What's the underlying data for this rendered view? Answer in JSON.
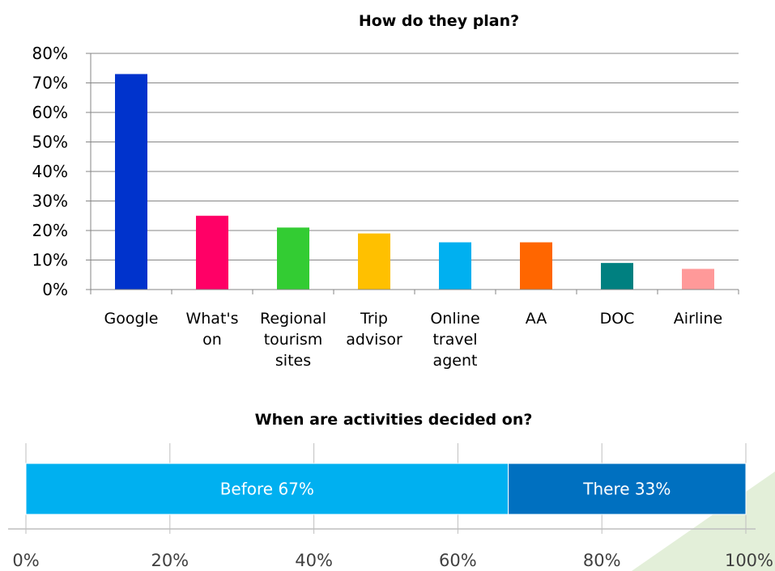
{
  "chart_data": [
    {
      "type": "bar",
      "title": "How do they plan?",
      "categories": [
        [
          "Google"
        ],
        [
          "What's",
          "on"
        ],
        [
          "Regional",
          "tourism",
          "sites"
        ],
        [
          "Trip",
          "advisor"
        ],
        [
          "Online",
          "travel",
          "agent"
        ],
        [
          "AA"
        ],
        [
          "DOC"
        ],
        [
          "Airline"
        ]
      ],
      "values": [
        73,
        25,
        21,
        19,
        16,
        16,
        9,
        7
      ],
      "colors": [
        "#0033cc",
        "#ff0066",
        "#33cc33",
        "#ffc000",
        "#00b0f0",
        "#ff6600",
        "#008080",
        "#ff9999"
      ],
      "ylim": [
        0,
        80
      ],
      "yticks": [
        0,
        10,
        20,
        30,
        40,
        50,
        60,
        70,
        80
      ],
      "ytick_labels": [
        "0%",
        "10%",
        "20%",
        "30%",
        "40%",
        "50%",
        "60%",
        "70%",
        "80%"
      ],
      "grid": true
    },
    {
      "type": "bar",
      "orientation": "horizontal-stacked",
      "title": "When are activities decided on?",
      "segments": [
        {
          "label": "Before 67%",
          "value": 67,
          "color": "#00b0f0"
        },
        {
          "label": "There 33%",
          "value": 33,
          "color": "#0070c0"
        }
      ],
      "xlim": [
        0,
        100
      ],
      "xticks": [
        0,
        20,
        40,
        60,
        80,
        100
      ],
      "xtick_labels": [
        "0%",
        "20%",
        "40%",
        "60%",
        "80%",
        "100%"
      ],
      "grid": true
    }
  ],
  "colors": {
    "gridline": "#868686",
    "corner_accent": "#e3efd9"
  }
}
